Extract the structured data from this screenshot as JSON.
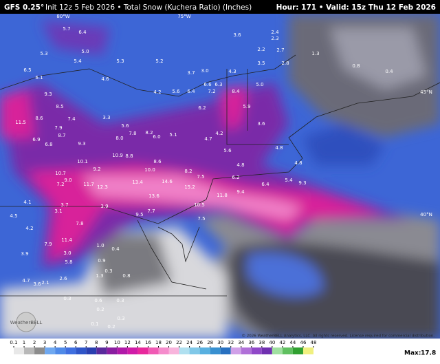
{
  "header": {
    "model": "GFS 0.25°",
    "init": "Init 12z 5 Feb 2026 • Total Snow (Kuchera Ratio) (Inches)",
    "valid": "Hour: 171 • Valid: 15z Thu 12 Feb 2026"
  },
  "map": {
    "labels": [
      "5.7",
      "6.4",
      "5.3",
      "5.0",
      "5.4",
      "5.3",
      "5.2",
      "6.5",
      "6.1",
      "4.6",
      "4.2",
      "5.6",
      "6.4",
      "6.6",
      "6.3",
      "7.2",
      "8.4",
      "5.0",
      "3.7",
      "3.0",
      "4.3",
      "3.6",
      "2.4",
      "2.3",
      "2.2",
      "2.7",
      "2.8",
      "3.5",
      "1.3",
      "0.8",
      "0.4",
      "9.3",
      "8.5",
      "8.6",
      "11.5",
      "7.4",
      "7.9",
      "6.9",
      "6.8",
      "8.7",
      "9.3",
      "3.3",
      "5.6",
      "6.2",
      "8.2",
      "6.0",
      "5.1",
      "8.0",
      "7.8",
      "10.9",
      "8.8",
      "8.6",
      "10.1",
      "9.2",
      "10.0",
      "8.2",
      "7.5",
      "6.2",
      "10.7",
      "9.0",
      "7.2",
      "11.7",
      "12.3",
      "13.4",
      "14.6",
      "15.2",
      "11.8",
      "9.4",
      "6.4",
      "9.3",
      "13.6",
      "10.5",
      "3.9",
      "9.5",
      "7.7",
      "7.8",
      "7.5",
      "11.4",
      "7.9",
      "5.8",
      "3.0",
      "1.0",
      "0.4",
      "0.9",
      "0.3",
      "1.3",
      "0.8",
      "2.1",
      "2.6",
      "0.3",
      "0.6",
      "0.3",
      "0.2",
      "0.1",
      "0.1",
      "0.2",
      "0.3",
      "3.9",
      "4.7",
      "3.6",
      "4.1",
      "4.5",
      "4.2",
      "3.7",
      "3.1",
      "4.8",
      "5.6",
      "4.7",
      "4.2",
      "5.9",
      "3.6",
      "4.8",
      "4.8",
      "5.4"
    ],
    "coordinate_labels": [
      "45°N",
      "40°N",
      "75°W",
      "80°W"
    ],
    "logo": "WeatherBELL",
    "copyright": "© 2026 WeatherBELL Analytics, LLC. All rights reserved. License required for commercial distribution."
  },
  "colorbar": {
    "ticks": [
      0.1,
      1,
      2,
      3,
      4,
      5,
      6,
      7,
      8,
      9,
      10,
      12,
      14,
      16,
      18,
      20,
      22,
      24,
      26,
      28,
      30,
      32,
      34,
      36,
      38,
      40,
      42,
      44,
      46,
      48
    ],
    "colors": [
      "#e8e8e8",
      "#b8b8b8",
      "#8c8c8c",
      "#6fa8f0",
      "#4f8ae8",
      "#3f6fe0",
      "#2f55c8",
      "#2a3fb0",
      "#5a2a9c",
      "#8a1ea0",
      "#b01aa8",
      "#d01ca8",
      "#e8289c",
      "#f05ab4",
      "#f58ccc",
      "#f8b4dc",
      "#b0e0f0",
      "#80c8e8",
      "#58b0e0",
      "#3890d0",
      "#2870c0",
      "#d0a0e8",
      "#b070d8",
      "#9048c8",
      "#7030b0",
      "#a0e0a0",
      "#60c060",
      "#30a030",
      "#f0f080"
    ]
  },
  "max": {
    "label": "Max:",
    "value": 17.8
  }
}
